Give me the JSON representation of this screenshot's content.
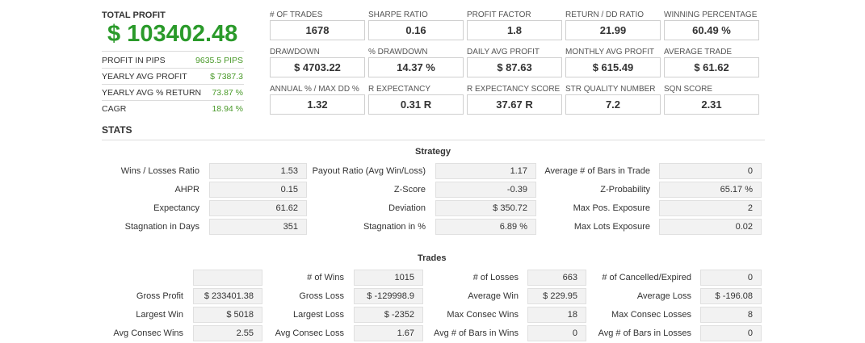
{
  "summary": {
    "total_profit_label": "TOTAL PROFIT",
    "total_profit_value": "$ 103402.48",
    "rows": [
      {
        "label": "PROFIT IN PIPS",
        "value": "9635.5 PIPS"
      },
      {
        "label": "YEARLY AVG PROFIT",
        "value": "$ 7387.3"
      },
      {
        "label": "YEARLY AVG % RETURN",
        "value": "73.87 %"
      },
      {
        "label": "CAGR",
        "value": "18.94 %"
      }
    ]
  },
  "cards": [
    [
      {
        "label": "# OF TRADES",
        "value": "1678"
      },
      {
        "label": "SHARPE RATIO",
        "value": "0.16"
      },
      {
        "label": "PROFIT FACTOR",
        "value": "1.8"
      },
      {
        "label": "RETURN / DD RATIO",
        "value": "21.99"
      },
      {
        "label": "WINNING PERCENTAGE",
        "value": "60.49 %"
      }
    ],
    [
      {
        "label": "DRAWDOWN",
        "value": "$ 4703.22"
      },
      {
        "label": "% DRAWDOWN",
        "value": "14.37 %"
      },
      {
        "label": "DAILY AVG PROFIT",
        "value": "$ 87.63"
      },
      {
        "label": "MONTHLY AVG PROFIT",
        "value": "$ 615.49"
      },
      {
        "label": "AVERAGE TRADE",
        "value": "$ 61.62"
      }
    ],
    [
      {
        "label": "ANNUAL % / MAX DD %",
        "value": "1.32"
      },
      {
        "label": "R EXPECTANCY",
        "value": "0.31 R"
      },
      {
        "label": "R EXPECTANCY SCORE",
        "value": "37.67 R"
      },
      {
        "label": "STR QUALITY NUMBER",
        "value": "7.2"
      },
      {
        "label": "SQN SCORE",
        "value": "2.31"
      }
    ]
  ],
  "stats_title": "STATS",
  "strategy": {
    "title": "Strategy",
    "rows": [
      [
        {
          "label": "Wins / Losses Ratio",
          "value": "1.53"
        },
        {
          "label": "Payout Ratio (Avg Win/Loss)",
          "value": "1.17"
        },
        {
          "label": "Average # of Bars in Trade",
          "value": "0"
        }
      ],
      [
        {
          "label": "AHPR",
          "value": "0.15"
        },
        {
          "label": "Z-Score",
          "value": "-0.39"
        },
        {
          "label": "Z-Probability",
          "value": "65.17 %"
        }
      ],
      [
        {
          "label": "Expectancy",
          "value": "61.62"
        },
        {
          "label": "Deviation",
          "value": "$ 350.72"
        },
        {
          "label": "Max Pos. Exposure",
          "value": "2"
        }
      ],
      [
        {
          "label": "Stagnation in Days",
          "value": "351"
        },
        {
          "label": "Stagnation in %",
          "value": "6.89 %"
        },
        {
          "label": "Max Lots Exposure",
          "value": "0.02"
        }
      ]
    ]
  },
  "trades": {
    "title": "Trades",
    "rows": [
      [
        {
          "label": "",
          "value": ""
        },
        {
          "label": "# of Wins",
          "value": "1015"
        },
        {
          "label": "# of Losses",
          "value": "663"
        },
        {
          "label": "# of Cancelled/Expired",
          "value": "0"
        }
      ],
      [
        {
          "label": "Gross Profit",
          "value": "$ 233401.38"
        },
        {
          "label": "Gross Loss",
          "value": "$ -129998.9"
        },
        {
          "label": "Average Win",
          "value": "$ 229.95"
        },
        {
          "label": "Average Loss",
          "value": "$ -196.08"
        }
      ],
      [
        {
          "label": "Largest Win",
          "value": "$ 5018"
        },
        {
          "label": "Largest Loss",
          "value": "$ -2352"
        },
        {
          "label": "Max Consec Wins",
          "value": "18"
        },
        {
          "label": "Max Consec Losses",
          "value": "8"
        }
      ],
      [
        {
          "label": "Avg Consec Wins",
          "value": "2.55"
        },
        {
          "label": "Avg Consec Loss",
          "value": "1.67"
        },
        {
          "label": "Avg # of Bars in Wins",
          "value": "0"
        },
        {
          "label": "Avg # of Bars in Losses",
          "value": "0"
        }
      ]
    ]
  },
  "colors": {
    "accent_green": "#2a9a2a",
    "value_green": "#4a9a2a"
  }
}
